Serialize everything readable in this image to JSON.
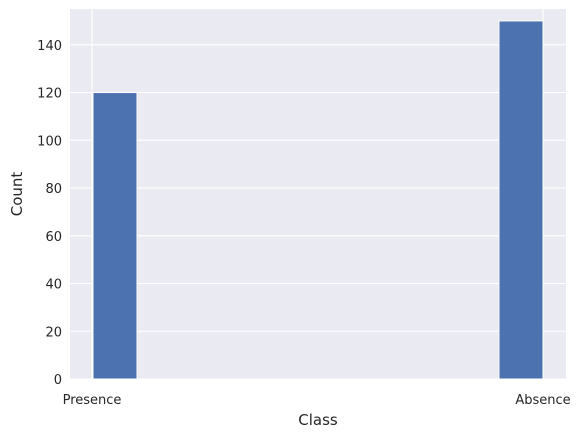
{
  "chart_data": {
    "type": "bar",
    "title": "",
    "xlabel": "Class",
    "ylabel": "Count",
    "categories": [
      "Presence",
      "Absence"
    ],
    "values": [
      120,
      150
    ],
    "ylim": [
      0,
      155
    ],
    "y_ticks": [
      0,
      20,
      40,
      60,
      80,
      100,
      120,
      140
    ],
    "grid": true,
    "legend": "none",
    "colors": {
      "bar": "#4c72b0",
      "plot_background": "#eaeaf2",
      "grid": "#ffffff"
    }
  }
}
